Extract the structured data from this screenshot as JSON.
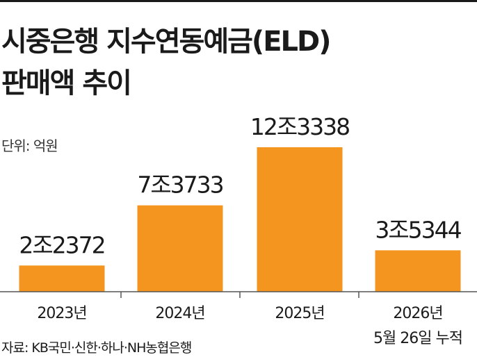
{
  "header": {
    "title_line1": "시중은행 지수연동예금(ELD)",
    "title_line2": "판매액 추이"
  },
  "unit_note": "단위: 억원",
  "source_note": "자료: KB국민·신한·하나·NH농협은행",
  "colors": {
    "bar": "#f4951f",
    "axis": "#555555",
    "rule": "#1a1a1a"
  },
  "chart_data": {
    "type": "bar",
    "title": "시중은행 지수연동예금(ELD) 판매액 추이",
    "unit": "억원",
    "categories": [
      "2023년",
      "2024년",
      "2025년",
      "2026년"
    ],
    "category_sub": [
      "",
      "",
      "",
      "5월 26일 누적"
    ],
    "values": [
      22372,
      73733,
      123338,
      35344
    ],
    "value_labels": [
      "2조2372",
      "7조3733",
      "12조3338",
      "3조5344"
    ],
    "ylim": [
      0,
      130000
    ],
    "grid": false,
    "legend": "none"
  }
}
